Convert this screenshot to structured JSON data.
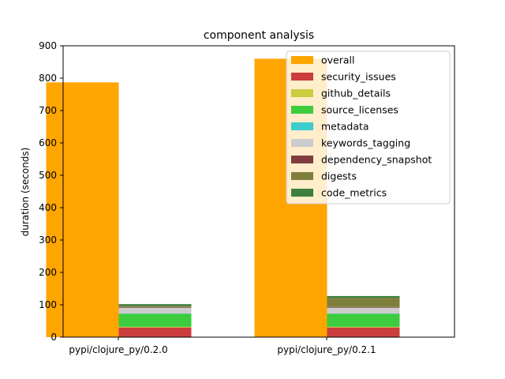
{
  "chart_data": {
    "type": "bar",
    "title": "component analysis",
    "xlabel": "",
    "ylabel": "duration (seconds)",
    "ylim": [
      0,
      900
    ],
    "yticks": [
      0,
      100,
      200,
      300,
      400,
      500,
      600,
      700,
      800,
      900
    ],
    "categories": [
      "pypi/clojure_py/0.2.0",
      "pypi/clojure_py/0.2.1"
    ],
    "legend_position": "top-right",
    "grid": false,
    "overall": {
      "name": "overall",
      "color": "#ffa500",
      "values": [
        787,
        860
      ]
    },
    "stacked_series": [
      {
        "name": "security_issues",
        "color": "#cc3d3d",
        "values": [
          30,
          30
        ]
      },
      {
        "name": "github_details",
        "color": "#cccc3d",
        "values": [
          2,
          2
        ]
      },
      {
        "name": "source_licenses",
        "color": "#3dcc3d",
        "values": [
          40,
          40
        ]
      },
      {
        "name": "metadata",
        "color": "#3dcccc",
        "values": [
          1,
          1
        ]
      },
      {
        "name": "keywords_tagging",
        "color": "#cccccc",
        "values": [
          18,
          18
        ]
      },
      {
        "name": "dependency_snapshot",
        "color": "#7f3d3d",
        "values": [
          2,
          2
        ]
      },
      {
        "name": "digests",
        "color": "#7f7f3d",
        "values": [
          3,
          28
        ]
      },
      {
        "name": "code_metrics",
        "color": "#3d7f3d",
        "values": [
          6,
          6
        ]
      }
    ]
  }
}
